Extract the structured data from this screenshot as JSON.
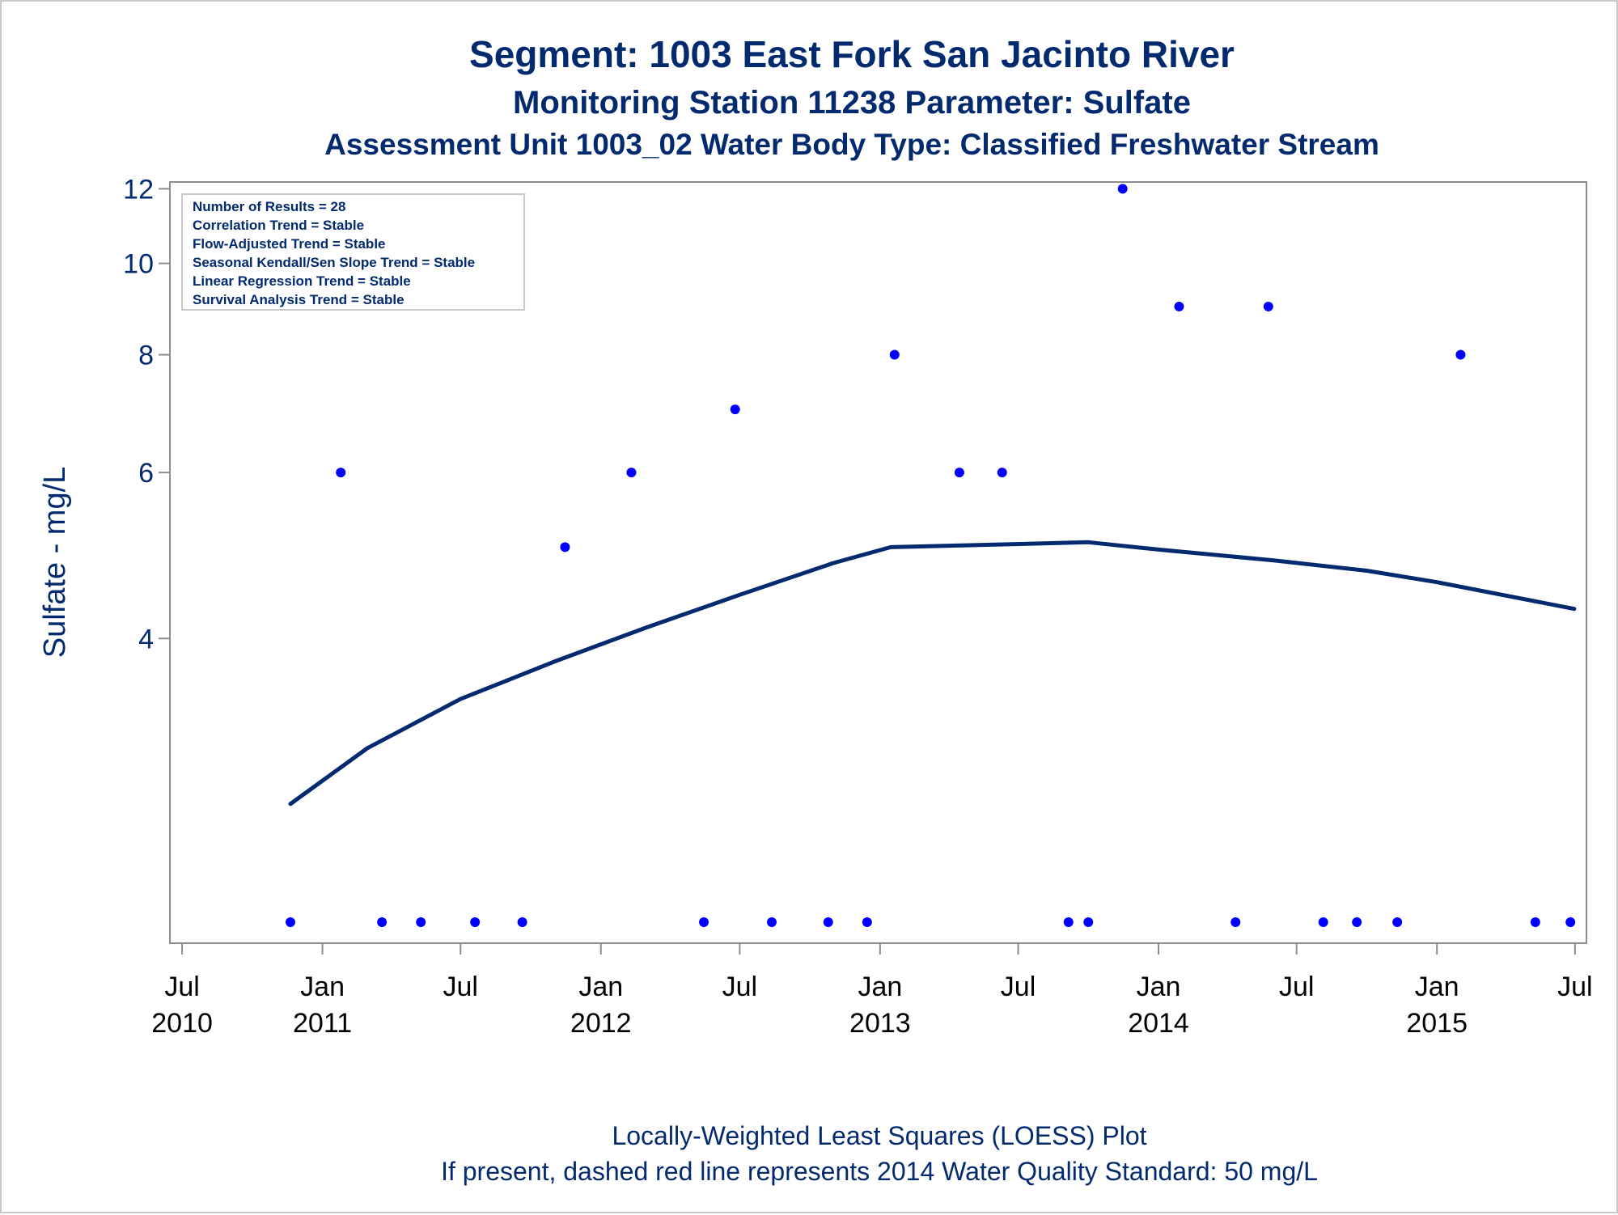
{
  "titles": {
    "line1": "Segment: 1003  East Fork San Jacinto River",
    "line2": "Monitoring Station 11238 Parameter: Sulfate",
    "line3": "Assessment Unit 1003_02   Water Body Type: Classified Freshwater Stream"
  },
  "inset": [
    "Number of Results = 28",
    "Correlation Trend = Stable",
    "Flow-Adjusted Trend = Stable",
    "Seasonal Kendall/Sen Slope Trend = Stable",
    "Linear Regression Trend = Stable",
    "Survival Analysis Trend = Stable"
  ],
  "footnotes": {
    "line1": "Locally-Weighted Least Squares (LOESS) Plot",
    "line2": "If present, dashed red line represents 2014 Water Quality Standard: 50    mg/L"
  },
  "colors": {
    "text": "#032a6f",
    "points": "#0000ff",
    "loess": "#032a6f",
    "axis": "#8c8c8c"
  },
  "chart_data": {
    "type": "scatter",
    "ylabel": "Sulfate - mg/L",
    "xlabel": "",
    "y_scale": "log",
    "ylim": [
      1.9,
      12.2
    ],
    "y_ticks": [
      4,
      6,
      8,
      10,
      12
    ],
    "xlim": [
      "2010-06-15",
      "2015-07-16"
    ],
    "x_ticks": [
      {
        "date": "2010-07-01",
        "line1": "Jul",
        "line2": "2010"
      },
      {
        "date": "2011-01-01",
        "line1": "Jan",
        "line2": "2011"
      },
      {
        "date": "2011-07-01",
        "line1": "Jul",
        "line2": ""
      },
      {
        "date": "2012-01-01",
        "line1": "Jan",
        "line2": "2012"
      },
      {
        "date": "2012-07-01",
        "line1": "Jul",
        "line2": ""
      },
      {
        "date": "2013-01-01",
        "line1": "Jan",
        "line2": "2013"
      },
      {
        "date": "2013-07-01",
        "line1": "Jul",
        "line2": ""
      },
      {
        "date": "2014-01-01",
        "line1": "Jan",
        "line2": "2014"
      },
      {
        "date": "2014-07-01",
        "line1": "Jul",
        "line2": ""
      },
      {
        "date": "2015-01-01",
        "line1": "Jan",
        "line2": "2015"
      },
      {
        "date": "2015-07-01",
        "line1": "Jul",
        "line2": ""
      }
    ],
    "grid": false,
    "series": [
      {
        "kind": "points",
        "points": [
          {
            "x": "2010-11-20",
            "y": 2
          },
          {
            "x": "2011-01-25",
            "y": 6
          },
          {
            "x": "2011-03-20",
            "y": 2
          },
          {
            "x": "2011-05-10",
            "y": 2
          },
          {
            "x": "2011-07-20",
            "y": 2
          },
          {
            "x": "2011-09-20",
            "y": 2
          },
          {
            "x": "2011-11-15",
            "y": 5
          },
          {
            "x": "2012-02-10",
            "y": 6
          },
          {
            "x": "2012-05-15",
            "y": 2
          },
          {
            "x": "2012-06-25",
            "y": 7
          },
          {
            "x": "2012-08-12",
            "y": 2
          },
          {
            "x": "2012-10-25",
            "y": 2
          },
          {
            "x": "2012-12-15",
            "y": 2
          },
          {
            "x": "2013-01-20",
            "y": 8
          },
          {
            "x": "2013-04-15",
            "y": 6
          },
          {
            "x": "2013-06-10",
            "y": 6
          },
          {
            "x": "2013-09-05",
            "y": 2
          },
          {
            "x": "2013-10-01",
            "y": 2
          },
          {
            "x": "2013-11-15",
            "y": 12
          },
          {
            "x": "2014-01-28",
            "y": 9
          },
          {
            "x": "2014-04-12",
            "y": 2
          },
          {
            "x": "2014-05-25",
            "y": 9
          },
          {
            "x": "2014-08-05",
            "y": 2
          },
          {
            "x": "2014-09-18",
            "y": 2
          },
          {
            "x": "2014-11-10",
            "y": 2
          },
          {
            "x": "2015-02-01",
            "y": 8
          },
          {
            "x": "2015-05-10",
            "y": 2
          },
          {
            "x": "2015-06-25",
            "y": 2
          }
        ]
      },
      {
        "kind": "loess",
        "points": [
          {
            "x": "2010-11-20",
            "y": 2.67
          },
          {
            "x": "2011-03-01",
            "y": 3.06
          },
          {
            "x": "2011-07-01",
            "y": 3.45
          },
          {
            "x": "2011-11-01",
            "y": 3.78
          },
          {
            "x": "2012-03-01",
            "y": 4.11
          },
          {
            "x": "2012-07-01",
            "y": 4.45
          },
          {
            "x": "2012-11-01",
            "y": 4.81
          },
          {
            "x": "2013-01-15",
            "y": 5.0
          },
          {
            "x": "2013-06-01",
            "y": 5.03
          },
          {
            "x": "2013-10-01",
            "y": 5.06
          },
          {
            "x": "2014-01-01",
            "y": 4.97
          },
          {
            "x": "2014-06-01",
            "y": 4.84
          },
          {
            "x": "2014-10-01",
            "y": 4.72
          },
          {
            "x": "2015-01-01",
            "y": 4.59
          },
          {
            "x": "2015-06-30",
            "y": 4.3
          }
        ]
      }
    ]
  }
}
